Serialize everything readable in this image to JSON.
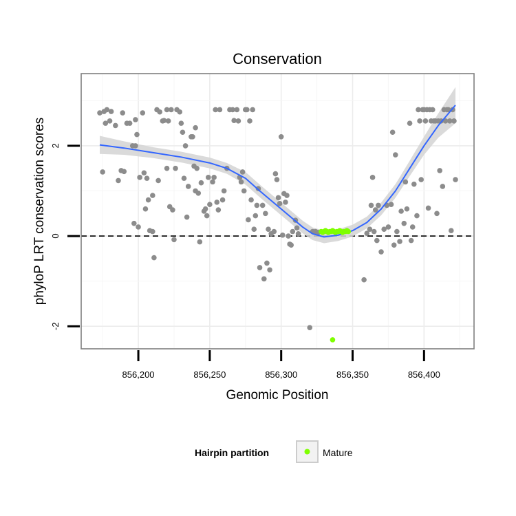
{
  "chart_data": {
    "type": "scatter",
    "title": "Conservation",
    "xlabel": "Genomic Position",
    "ylabel": "phyloP LRT conservation scores",
    "xlim": [
      856160,
      856435
    ],
    "ylim": [
      -2.5,
      3.6
    ],
    "x_ticks": [
      856200,
      856250,
      856300,
      856350,
      856400
    ],
    "x_tick_labels": [
      "856,200",
      "856,250",
      "856,300",
      "856,350",
      "856,400"
    ],
    "y_ticks": [
      -2,
      0,
      2
    ],
    "y_tick_labels": [
      "-2",
      "0",
      "2"
    ],
    "reference_line": {
      "y": 0,
      "style": "dashed"
    },
    "grid": true,
    "legend": {
      "title": "Hairpin partition",
      "position": "bottom",
      "entries": [
        {
          "label": "Mature",
          "color": "#7fff00"
        }
      ]
    },
    "colors": {
      "other": "#8c8c8c",
      "mature": "#7fff00",
      "smooth": "#3366ff",
      "band": "#d4d4d4"
    },
    "series": [
      {
        "name": "Other",
        "points": [
          [
            856173,
            2.73
          ],
          [
            856176,
            2.76
          ],
          [
            856178,
            2.8
          ],
          [
            856181,
            2.76
          ],
          [
            856177,
            2.5
          ],
          [
            856180,
            2.55
          ],
          [
            856184,
            2.45
          ],
          [
            856175,
            1.42
          ],
          [
            856186,
            1.23
          ],
          [
            856188,
            1.45
          ],
          [
            856190,
            1.43
          ],
          [
            856189,
            2.73
          ],
          [
            856192,
            2.5
          ],
          [
            856194,
            2.5
          ],
          [
            856196,
            2.0
          ],
          [
            856198,
            2.0
          ],
          [
            856198,
            2.58
          ],
          [
            856199,
            2.25
          ],
          [
            856197,
            0.28
          ],
          [
            856200,
            0.2
          ],
          [
            856201,
            1.3
          ],
          [
            856203,
            2.73
          ],
          [
            856204,
            1.4
          ],
          [
            856205,
            0.6
          ],
          [
            856206,
            1.28
          ],
          [
            856207,
            0.8
          ],
          [
            856208,
            0.12
          ],
          [
            856210,
            0.1
          ],
          [
            856210,
            0.9
          ],
          [
            856211,
            -0.48
          ],
          [
            856213,
            2.8
          ],
          [
            856215,
            2.75
          ],
          [
            856214,
            1.23
          ],
          [
            856217,
            2.55
          ],
          [
            856218,
            2.56
          ],
          [
            856220,
            2.8
          ],
          [
            856221,
            2.55
          ],
          [
            856223,
            2.8
          ],
          [
            856220,
            1.5
          ],
          [
            856222,
            0.65
          ],
          [
            856224,
            0.58
          ],
          [
            856225,
            -0.08
          ],
          [
            856226,
            1.5
          ],
          [
            856227,
            2.8
          ],
          [
            856229,
            2.75
          ],
          [
            856230,
            2.5
          ],
          [
            856231,
            2.3
          ],
          [
            856232,
            1.28
          ],
          [
            856233,
            2.0
          ],
          [
            856234,
            0.42
          ],
          [
            856235,
            1.1
          ],
          [
            856237,
            2.2
          ],
          [
            856238,
            2.2
          ],
          [
            856240,
            2.4
          ],
          [
            856239,
            1.55
          ],
          [
            856240,
            1.0
          ],
          [
            856241,
            1.5
          ],
          [
            856242,
            0.95
          ],
          [
            856243,
            -0.13
          ],
          [
            856244,
            1.18
          ],
          [
            856246,
            0.55
          ],
          [
            856247,
            0.6
          ],
          [
            856248,
            0.45
          ],
          [
            856249,
            1.3
          ],
          [
            856250,
            0.7
          ],
          [
            856252,
            1.2
          ],
          [
            856253,
            1.3
          ],
          [
            856255,
            0.75
          ],
          [
            856256,
            0.58
          ],
          [
            856254,
            2.8
          ],
          [
            856257,
            2.8
          ],
          [
            856259,
            0.8
          ],
          [
            856260,
            1.0
          ],
          [
            856262,
            1.5
          ],
          [
            856264,
            2.8
          ],
          [
            856266,
            2.8
          ],
          [
            856267,
            2.56
          ],
          [
            856269,
            2.8
          ],
          [
            856270,
            2.55
          ],
          [
            856271,
            1.3
          ],
          [
            856273,
            1.42
          ],
          [
            856275,
            2.8
          ],
          [
            856276,
            2.8
          ],
          [
            856278,
            2.55
          ],
          [
            856280,
            2.8
          ],
          [
            856272,
            1.2
          ],
          [
            856274,
            1.0
          ],
          [
            856277,
            0.36
          ],
          [
            856279,
            0.8
          ],
          [
            856281,
            0.15
          ],
          [
            856282,
            0.45
          ],
          [
            856283,
            0.68
          ],
          [
            856284,
            1.05
          ],
          [
            856285,
            -0.7
          ],
          [
            856287,
            0.68
          ],
          [
            856288,
            -0.95
          ],
          [
            856289,
            0.5
          ],
          [
            856290,
            -0.6
          ],
          [
            856291,
            0.15
          ],
          [
            856292,
            -0.75
          ],
          [
            856293,
            0.05
          ],
          [
            856295,
            0.1
          ],
          [
            856296,
            1.38
          ],
          [
            856297,
            1.25
          ],
          [
            856298,
            0.85
          ],
          [
            856299,
            0.72
          ],
          [
            856300,
            2.2
          ],
          [
            856301,
            0.02
          ],
          [
            856302,
            0.94
          ],
          [
            856303,
            0.75
          ],
          [
            856304,
            0.9
          ],
          [
            856305,
            0.0
          ],
          [
            856306,
            -0.18
          ],
          [
            856307,
            -0.2
          ],
          [
            856308,
            0.1
          ],
          [
            856310,
            0.35
          ],
          [
            856311,
            0.18
          ],
          [
            856312,
            0.05
          ],
          [
            856320,
            -2.03
          ],
          [
            856322,
            0.1
          ],
          [
            856324,
            0.1
          ],
          [
            856326,
            0.08
          ],
          [
            856358,
            -0.97
          ],
          [
            856360,
            0.06
          ],
          [
            856362,
            0.15
          ],
          [
            856363,
            0.68
          ],
          [
            856364,
            1.3
          ],
          [
            856365,
            0.1
          ],
          [
            856366,
            0.58
          ],
          [
            856367,
            -0.1
          ],
          [
            856368,
            0.68
          ],
          [
            856370,
            -0.35
          ],
          [
            856372,
            0.15
          ],
          [
            856374,
            0.68
          ],
          [
            856375,
            0.2
          ],
          [
            856377,
            0.7
          ],
          [
            856378,
            2.3
          ],
          [
            856379,
            -0.2
          ],
          [
            856380,
            1.8
          ],
          [
            856381,
            0.1
          ],
          [
            856383,
            -0.12
          ],
          [
            856384,
            0.55
          ],
          [
            856386,
            0.28
          ],
          [
            856387,
            1.2
          ],
          [
            856388,
            0.6
          ],
          [
            856390,
            2.5
          ],
          [
            856391,
            -0.1
          ],
          [
            856392,
            0.2
          ],
          [
            856393,
            1.15
          ],
          [
            856395,
            0.45
          ],
          [
            856396,
            2.8
          ],
          [
            856397,
            2.55
          ],
          [
            856398,
            1.25
          ],
          [
            856399,
            2.8
          ],
          [
            856400,
            2.8
          ],
          [
            856401,
            2.55
          ],
          [
            856402,
            2.8
          ],
          [
            856403,
            0.62
          ],
          [
            856404,
            2.8
          ],
          [
            856405,
            2.55
          ],
          [
            856406,
            2.8
          ],
          [
            856407,
            2.55
          ],
          [
            856408,
            2.55
          ],
          [
            856409,
            0.5
          ],
          [
            856410,
            2.55
          ],
          [
            856411,
            1.45
          ],
          [
            856412,
            2.55
          ],
          [
            856413,
            1.1
          ],
          [
            856414,
            2.8
          ],
          [
            856415,
            2.55
          ],
          [
            856416,
            2.8
          ],
          [
            856417,
            2.8
          ],
          [
            856418,
            2.55
          ],
          [
            856419,
            0.12
          ],
          [
            856420,
            2.8
          ],
          [
            856421,
            2.55
          ],
          [
            856422,
            1.25
          ]
        ]
      },
      {
        "name": "Mature",
        "points": [
          [
            856328,
            0.1
          ],
          [
            856329,
            0.08
          ],
          [
            856330,
            0.1
          ],
          [
            856331,
            0.12
          ],
          [
            856332,
            0.1
          ],
          [
            856333,
            0.08
          ],
          [
            856334,
            0.1
          ],
          [
            856335,
            0.1
          ],
          [
            856336,
            0.12
          ],
          [
            856337,
            0.1
          ],
          [
            856338,
            0.08
          ],
          [
            856339,
            0.1
          ],
          [
            856340,
            0.1
          ],
          [
            856341,
            0.12
          ],
          [
            856342,
            0.1
          ],
          [
            856343,
            0.08
          ],
          [
            856344,
            0.1
          ],
          [
            856345,
            0.1
          ],
          [
            856346,
            0.12
          ],
          [
            856347,
            0.1
          ],
          [
            856336,
            -2.3
          ]
        ]
      }
    ],
    "smooth_line": [
      [
        856173,
        2.02
      ],
      [
        856190,
        1.95
      ],
      [
        856210,
        1.85
      ],
      [
        856230,
        1.75
      ],
      [
        856250,
        1.62
      ],
      [
        856262,
        1.5
      ],
      [
        856275,
        1.28
      ],
      [
        856285,
        1.0
      ],
      [
        856300,
        0.6
      ],
      [
        856315,
        0.2
      ],
      [
        856322,
        0.05
      ],
      [
        856330,
        -0.02
      ],
      [
        856340,
        0.02
      ],
      [
        856350,
        0.12
      ],
      [
        856360,
        0.3
      ],
      [
        856370,
        0.6
      ],
      [
        856380,
        1.0
      ],
      [
        856390,
        1.5
      ],
      [
        856400,
        2.0
      ],
      [
        856410,
        2.45
      ],
      [
        856422,
        2.9
      ]
    ],
    "smooth_band": [
      [
        856173,
        2.22,
        1.82
      ],
      [
        856190,
        2.1,
        1.8
      ],
      [
        856210,
        1.97,
        1.73
      ],
      [
        856230,
        1.87,
        1.63
      ],
      [
        856250,
        1.74,
        1.5
      ],
      [
        856262,
        1.62,
        1.38
      ],
      [
        856275,
        1.42,
        1.14
      ],
      [
        856285,
        1.14,
        0.86
      ],
      [
        856300,
        0.74,
        0.46
      ],
      [
        856315,
        0.34,
        0.06
      ],
      [
        856322,
        0.19,
        -0.09
      ],
      [
        856330,
        0.12,
        -0.16
      ],
      [
        856340,
        0.15,
        -0.11
      ],
      [
        856350,
        0.25,
        -0.01
      ],
      [
        856360,
        0.43,
        0.17
      ],
      [
        856370,
        0.74,
        0.46
      ],
      [
        856380,
        1.15,
        0.85
      ],
      [
        856390,
        1.67,
        1.33
      ],
      [
        856400,
        2.2,
        1.8
      ],
      [
        856410,
        2.72,
        2.18
      ],
      [
        856422,
        3.3,
        2.5
      ]
    ]
  }
}
